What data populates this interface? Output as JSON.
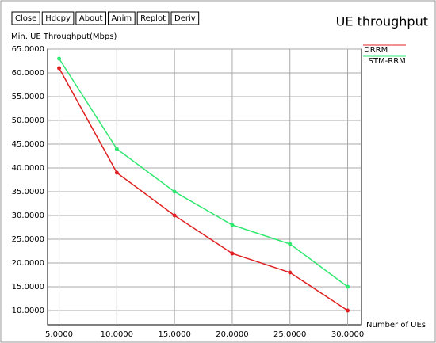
{
  "buttons": [
    "Close",
    "Hdcpy",
    "About",
    "Anim",
    "Replot",
    "Deriv"
  ],
  "chart_data": {
    "type": "line",
    "title": "UE throughput",
    "y_label": "Min. UE Throughput(Mbps)",
    "x_label": "Number of UEs",
    "x": [
      5,
      10,
      15,
      20,
      25,
      30
    ],
    "series": [
      {
        "name": "DRRM",
        "color": "#e02020",
        "values": [
          61,
          39,
          30,
          22,
          18,
          10
        ]
      },
      {
        "name": "LSTM-RRM",
        "color": "#30e870",
        "values": [
          63,
          44,
          35,
          28,
          24,
          15
        ]
      }
    ],
    "xlim": [
      4,
      31.2
    ],
    "xticks": [
      {
        "value": 5,
        "label": "5.0000"
      },
      {
        "value": 10,
        "label": "10.0000"
      },
      {
        "value": 15,
        "label": "15.0000"
      },
      {
        "value": 20,
        "label": "20.0000"
      },
      {
        "value": 25,
        "label": "25.0000"
      },
      {
        "value": 30,
        "label": "30.0000"
      }
    ],
    "ylim": [
      7,
      65
    ],
    "yticks": [
      {
        "value": 10,
        "label": "10.0000"
      },
      {
        "value": 15,
        "label": "15.0000"
      },
      {
        "value": 20,
        "label": "20.0000"
      },
      {
        "value": 25,
        "label": "25.0000"
      },
      {
        "value": 30,
        "label": "30.0000"
      },
      {
        "value": 35,
        "label": "35.0000"
      },
      {
        "value": 40,
        "label": "40.0000"
      },
      {
        "value": 45,
        "label": "45.0000"
      },
      {
        "value": 50,
        "label": "50.0000"
      },
      {
        "value": 55,
        "label": "55.0000"
      },
      {
        "value": 60,
        "label": "60.0000"
      },
      {
        "value": 65,
        "label": "65.0000"
      }
    ],
    "grid": true
  }
}
